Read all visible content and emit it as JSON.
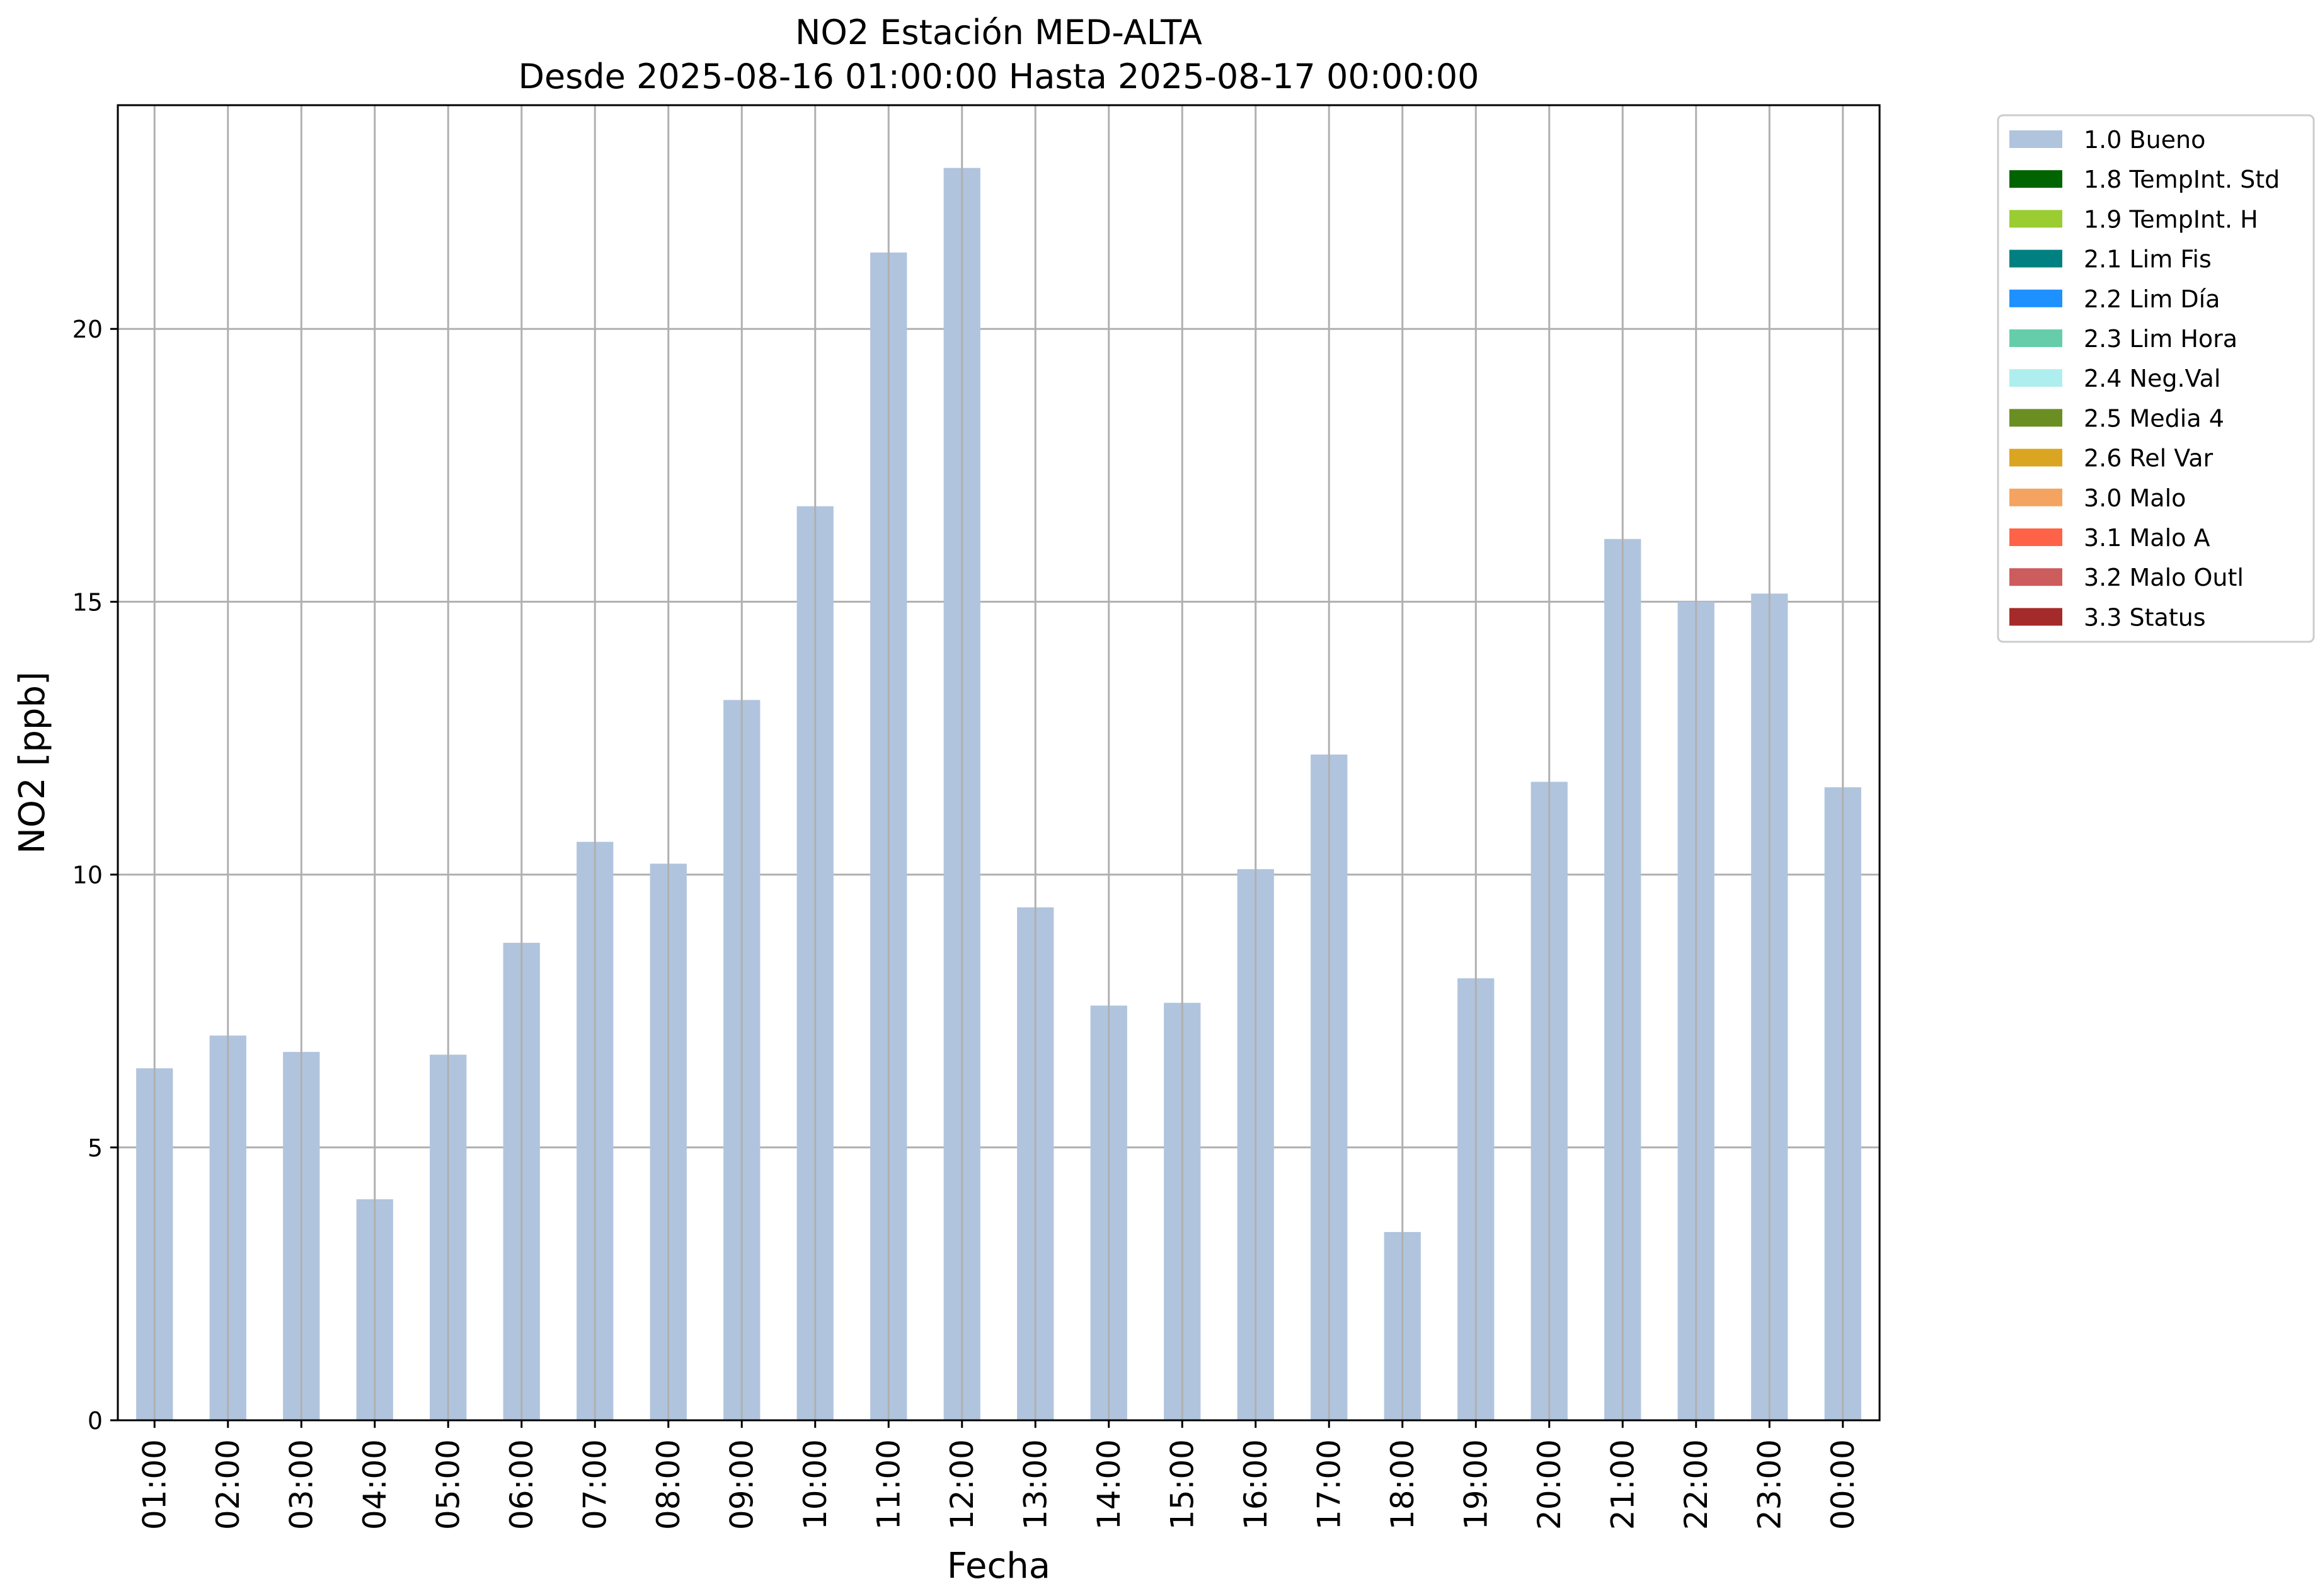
{
  "chart_data": {
    "type": "bar",
    "title": "NO2 Estación MED-ALTA",
    "subtitle": "Desde 2025-08-16 01:00:00 Hasta 2025-08-17 00:00:00",
    "xlabel": "Fecha",
    "ylabel": "NO2 [ppb]",
    "ylim": [
      0,
      24.1
    ],
    "yticks": [
      0,
      5,
      10,
      15,
      20
    ],
    "grid": true,
    "legend_position": "outside-top-right",
    "categories": [
      "01:00",
      "02:00",
      "03:00",
      "04:00",
      "05:00",
      "06:00",
      "07:00",
      "08:00",
      "09:00",
      "10:00",
      "11:00",
      "12:00",
      "13:00",
      "14:00",
      "15:00",
      "16:00",
      "17:00",
      "18:00",
      "19:00",
      "20:00",
      "21:00",
      "22:00",
      "23:00",
      "00:00"
    ],
    "series": [
      {
        "name": "1.0 Bueno",
        "color": "#b0c4de",
        "values": [
          6.45,
          7.05,
          6.75,
          4.05,
          6.7,
          8.75,
          10.6,
          10.2,
          13.2,
          16.75,
          21.4,
          22.95,
          9.4,
          7.6,
          7.65,
          10.1,
          12.2,
          3.45,
          8.1,
          11.7,
          16.15,
          15.0,
          15.15,
          11.6
        ]
      }
    ],
    "legend": [
      {
        "label": "1.0 Bueno",
        "color": "#b0c4de"
      },
      {
        "label": "1.8 TempInt. Std",
        "color": "#006400"
      },
      {
        "label": "1.9 TempInt. H",
        "color": "#9acd32"
      },
      {
        "label": "2.1 Lim Fis",
        "color": "#008080"
      },
      {
        "label": "2.2 Lim Día",
        "color": "#1e90ff"
      },
      {
        "label": "2.3 Lim Hora",
        "color": "#66cdaa"
      },
      {
        "label": "2.4 Neg.Val",
        "color": "#afeeee"
      },
      {
        "label": "2.5 Media 4",
        "color": "#6b8e23"
      },
      {
        "label": "2.6 Rel Var",
        "color": "#daa520"
      },
      {
        "label": "3.0 Malo",
        "color": "#f4a460"
      },
      {
        "label": "3.1 Malo A",
        "color": "#ff6347"
      },
      {
        "label": "3.2 Malo Outl",
        "color": "#cd5c5c"
      },
      {
        "label": "3.3 Status",
        "color": "#a52a2a"
      }
    ]
  }
}
